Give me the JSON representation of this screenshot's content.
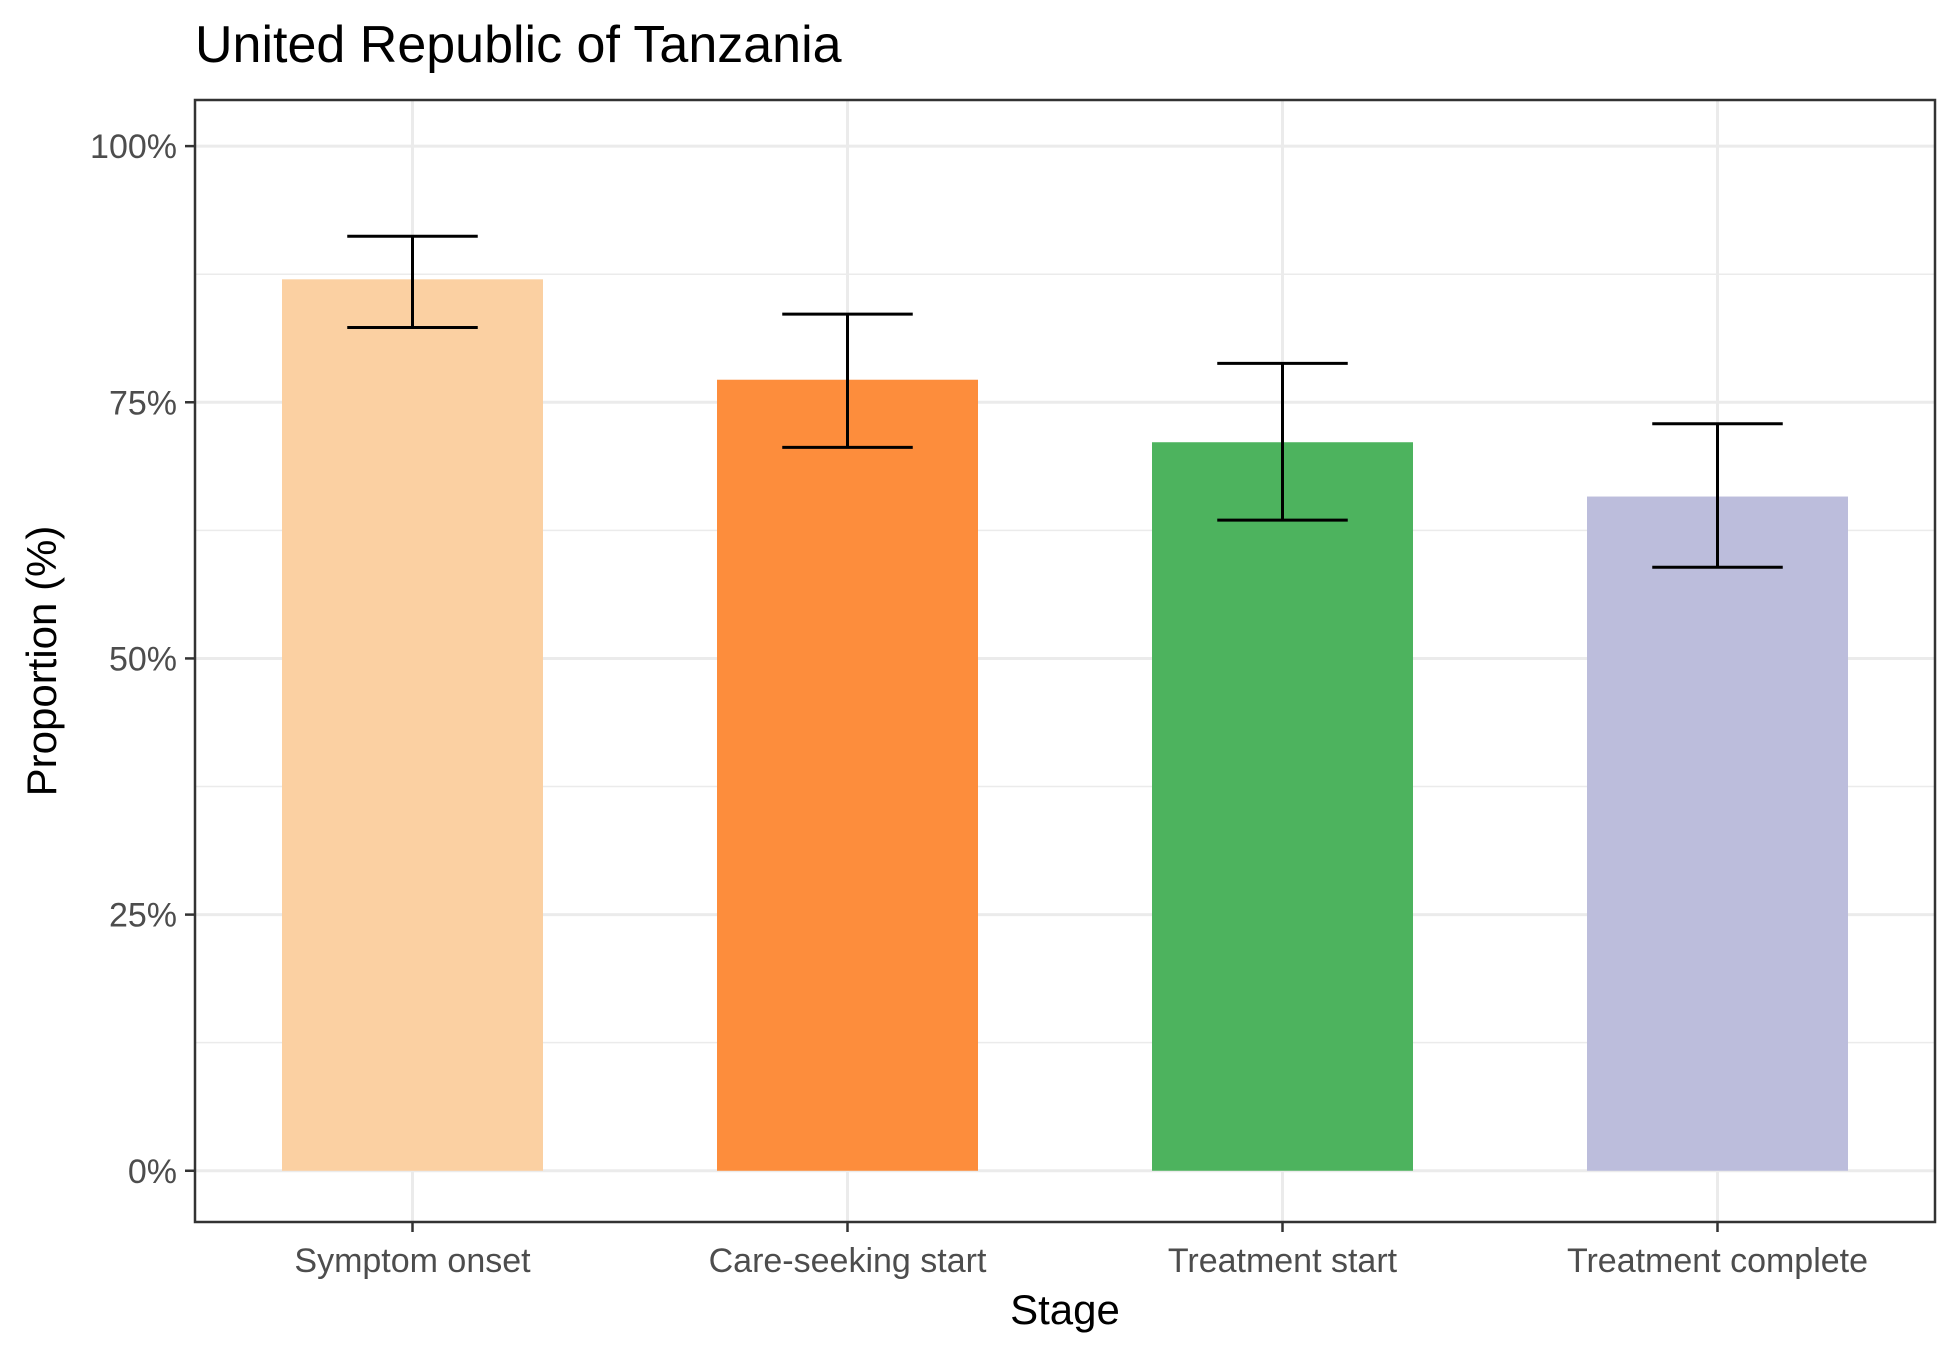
{
  "chart_data": {
    "type": "bar",
    "title": "United Republic of Tanzania",
    "xlabel": "Stage",
    "ylabel": "Proportion (%)",
    "categories": [
      "Symptom onset",
      "Care-seeking start",
      "Treatment start",
      "Treatment complete"
    ],
    "values": [
      0.87,
      0.772,
      0.711,
      0.658
    ],
    "error_lower": [
      0.823,
      0.706,
      0.635,
      0.589
    ],
    "error_upper": [
      0.912,
      0.836,
      0.788,
      0.729
    ],
    "colors": [
      "#FBD0A2",
      "#FD8D3C",
      "#4DB35E",
      "#BCBDDC"
    ],
    "ylim": [
      -0.05,
      1.045
    ],
    "yticks": [
      0,
      0.25,
      0.5,
      0.75,
      1.0
    ],
    "ytick_labels": [
      "0%",
      "25%",
      "50%",
      "75%",
      "100%"
    ],
    "grid": true,
    "legend": "none"
  }
}
